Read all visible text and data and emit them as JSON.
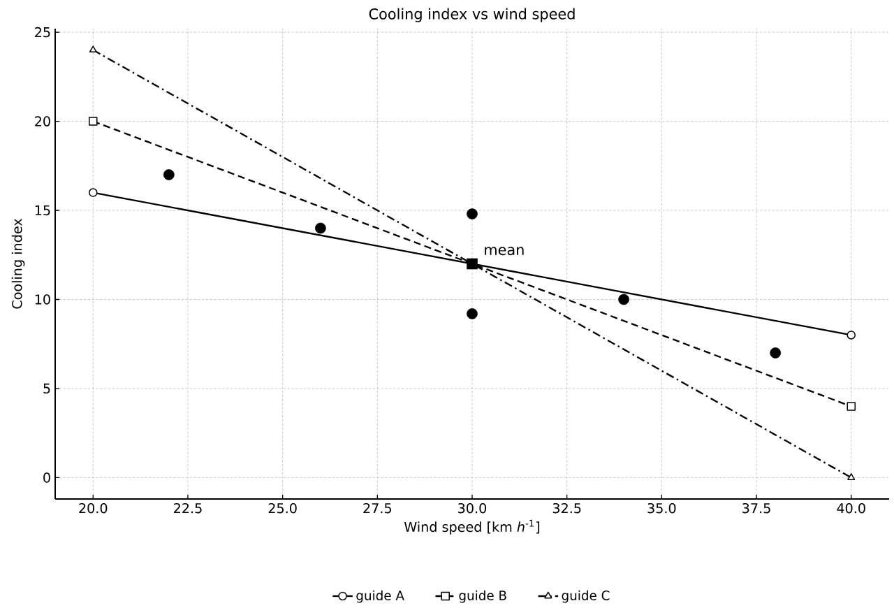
{
  "chart_data": {
    "type": "line",
    "title": "Cooling index vs wind speed",
    "xlabel": "Wind speed [km *h*$^{-1}$]",
    "ylabel": "Cooling index",
    "xlim": [
      19,
      41
    ],
    "ylim": [
      -1.2,
      25.2
    ],
    "xticks": [
      {
        "value": 20,
        "label": "20.0"
      },
      {
        "value": 22.5,
        "label": "22.5"
      },
      {
        "value": 25,
        "label": "25.0"
      },
      {
        "value": 27.5,
        "label": "27.5"
      },
      {
        "value": 30,
        "label": "30.0"
      },
      {
        "value": 32.5,
        "label": "32.5"
      },
      {
        "value": 35,
        "label": "35.0"
      },
      {
        "value": 37.5,
        "label": "37.5"
      },
      {
        "value": 40,
        "label": "40.0"
      }
    ],
    "yticks": [
      0,
      5,
      10,
      15,
      20,
      25
    ],
    "grid": true,
    "legend": "bottom",
    "annotations": [
      {
        "text": "mean",
        "x": 30,
        "y": 12
      }
    ],
    "series": [
      {
        "name": "guide A",
        "color": "#000000",
        "marker": "circle",
        "line_style": "solid",
        "x": [
          20,
          40
        ],
        "values": [
          16,
          8
        ]
      },
      {
        "name": "guide B",
        "color": "#000000",
        "marker": "square",
        "line_style": "dashed",
        "x": [
          20,
          40
        ],
        "values": [
          20,
          4
        ]
      },
      {
        "name": "guide C",
        "color": "#000000",
        "marker": "triangle",
        "line_style": "dashdot",
        "x": [
          20,
          40
        ],
        "values": [
          24,
          0
        ]
      },
      {
        "type": "scatter",
        "color": "#000000",
        "marker": "circle",
        "x": [
          22,
          26,
          30,
          30,
          34,
          38
        ],
        "values": [
          17,
          14,
          14.8,
          9.2,
          10,
          7
        ]
      },
      {
        "type": "scatter",
        "color": "#000000",
        "marker": "square",
        "x": [
          30
        ],
        "values": [
          12
        ]
      }
    ]
  }
}
